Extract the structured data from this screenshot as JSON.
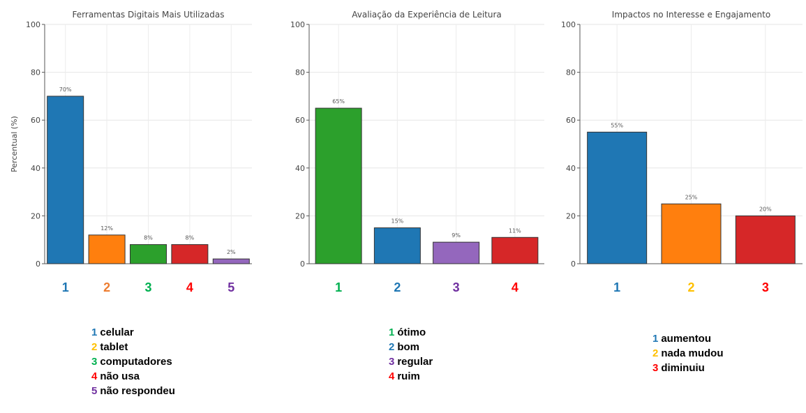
{
  "chart_data": [
    {
      "type": "bar",
      "title": "Ferramentas Digitais Mais Utilizadas",
      "ylabel": "Percentual (%)",
      "ylim": [
        0,
        100
      ],
      "yticks": [
        "0",
        "20",
        "40",
        "60",
        "80",
        "100"
      ],
      "categories": [
        "1",
        "2",
        "3",
        "4",
        "5"
      ],
      "values": [
        70,
        12,
        8,
        8,
        2
      ],
      "value_labels": [
        "70%",
        "12%",
        "8%",
        "8%",
        "2%"
      ],
      "colors": [
        "#1f77b4",
        "#ff7f0e",
        "#2ca02c",
        "#d62728",
        "#9467bd"
      ],
      "category_label_colors": [
        "#1f77b4",
        "#ed7d31",
        "#00b050",
        "#ff0000",
        "#7030a0"
      ],
      "legend": [
        {
          "num": "1",
          "text": "celular",
          "color": "#1f77b4"
        },
        {
          "num": "2",
          "text": "tablet",
          "color": "#ffc000"
        },
        {
          "num": "3",
          "text": "computadores",
          "color": "#00b050"
        },
        {
          "num": "4",
          "text": "não usa",
          "color": "#ff0000"
        },
        {
          "num": "5",
          "text": "não respondeu",
          "color": "#7030a0"
        }
      ]
    },
    {
      "type": "bar",
      "title": "Avaliação da Experiência de Leitura",
      "ylabel": "",
      "ylim": [
        0,
        100
      ],
      "yticks": [
        "0",
        "20",
        "40",
        "60",
        "80",
        "100"
      ],
      "categories": [
        "1",
        "2",
        "3",
        "4"
      ],
      "values": [
        65,
        15,
        9,
        11
      ],
      "value_labels": [
        "65%",
        "15%",
        "9%",
        "11%"
      ],
      "colors": [
        "#2ca02c",
        "#1f77b4",
        "#9467bd",
        "#d62728"
      ],
      "category_label_colors": [
        "#00b050",
        "#1f77b4",
        "#7030a0",
        "#ff0000"
      ],
      "legend": [
        {
          "num": "1",
          "text": "ótimo",
          "color": "#00b050"
        },
        {
          "num": "2",
          "text": "bom",
          "color": "#1f77b4"
        },
        {
          "num": "3",
          "text": "regular",
          "color": "#7030a0"
        },
        {
          "num": "4",
          "text": "ruim",
          "color": "#ff0000"
        }
      ]
    },
    {
      "type": "bar",
      "title": "Impactos no Interesse e Engajamento",
      "ylabel": "",
      "ylim": [
        0,
        100
      ],
      "yticks": [
        "0",
        "20",
        "40",
        "60",
        "80",
        "100"
      ],
      "categories": [
        "1",
        "2",
        "3"
      ],
      "values": [
        55,
        25,
        20
      ],
      "value_labels": [
        "55%",
        "25%",
        "20%"
      ],
      "colors": [
        "#1f77b4",
        "#ff7f0e",
        "#d62728"
      ],
      "category_label_colors": [
        "#1f77b4",
        "#ffc000",
        "#ff0000"
      ],
      "legend": [
        {
          "num": "1",
          "text": "aumentou",
          "color": "#1f77b4"
        },
        {
          "num": "2",
          "text": "nada mudou",
          "color": "#ffc000"
        },
        {
          "num": "3",
          "text": "diminuiu",
          "color": "#ff0000"
        }
      ]
    }
  ]
}
